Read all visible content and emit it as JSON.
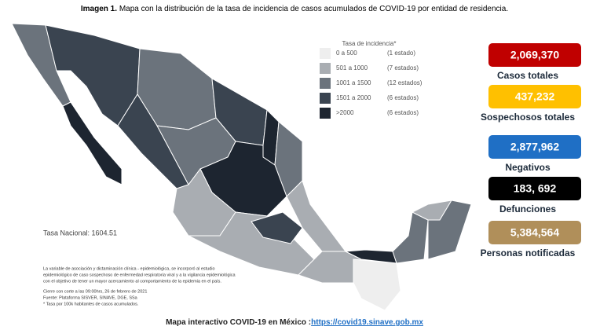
{
  "header": {
    "label": "Imagen 1.",
    "title": "Mapa con la distribución de la tasa de incidencia de casos acumulados de COVID-19 por entidad de residencia."
  },
  "legend": {
    "title": "Tasa de incidencia*",
    "entries": [
      {
        "range": "0 a  500",
        "count": "(1 estado)",
        "color": "#eeeeee"
      },
      {
        "range": "501 a  1000",
        "count": "(7 estados)",
        "color": "#a9adb2"
      },
      {
        "range": "1001 a  1500",
        "count": "(12 estados)",
        "color": "#6b737c"
      },
      {
        "range": "1501 a  2000",
        "count": "(6 estados)",
        "color": "#3a4450"
      },
      {
        "range": ">2000",
        "count": "(6 estados)",
        "color": "#1d2530"
      }
    ]
  },
  "stats": [
    {
      "value": "2,069,370",
      "label": "Casos totales",
      "color": "#c00000"
    },
    {
      "value": "437,232",
      "label": "Sospechosos totales",
      "color": "#ffc000"
    },
    {
      "value": "2,877,962",
      "label": "Negativos",
      "color": "#1f6fc5"
    },
    {
      "value": "183, 692",
      "label": "Defunciones",
      "color": "#000000"
    },
    {
      "value": "5,384,564",
      "label": "Personas notificadas",
      "color": "#b08f5a"
    }
  ],
  "national_rate": "Tasa Nacional: 1604.51",
  "notes": [
    "La variable de asociación y dictaminación clínica - epidemiológica, se incorporó al estudio",
    "epidemiológico de caso sospechoso de enfermedad respiratoria viral y a la vigilancia epidemiológica",
    "con el objetivo de tener un mayor acercamiento al comportamiento de la epidemia en el país.",
    "Cierre con corte a las 09:00hrs, 26 de febrero de 2021",
    "Fuente: Plataforma SISVER, SINAVE, DGE, SSa",
    "* Tasa por 100k habitantes de casos acumulados."
  ],
  "footer": {
    "text": "Mapa interactivo COVID-19 en México :",
    "link": "https://covid19.sinave.gob.mx"
  }
}
